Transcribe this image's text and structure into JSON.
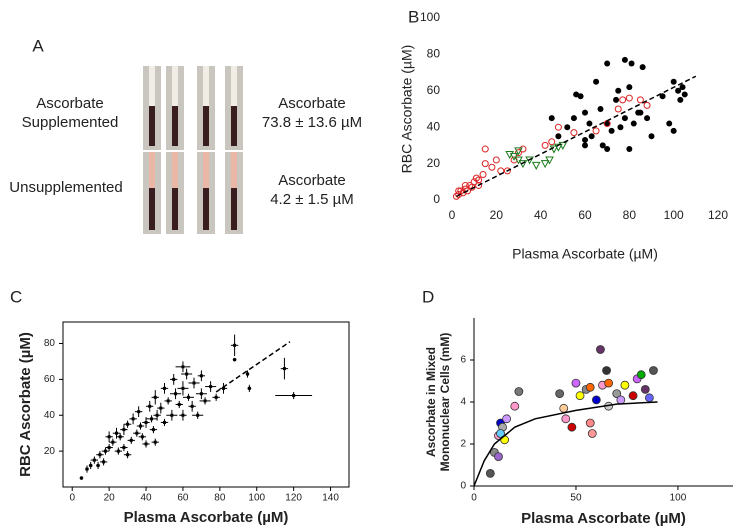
{
  "panel_a": {
    "label": "A",
    "rows": [
      {
        "label_lines": [
          "Ascorbate",
          "Supplemented"
        ],
        "result_lines": [
          "Ascorbate",
          "73.8 ± 13.6 µM"
        ]
      },
      {
        "label_lines": [
          "Unsupplemented"
        ],
        "result_lines": [
          "Ascorbate",
          "4.2 ± 1.5 µM"
        ]
      }
    ]
  },
  "chart_data": [
    {
      "type": "scatter",
      "panel_label": "B",
      "xlabel": "Plasma Ascorbate (µM)",
      "ylabel": [
        "RBC Ascorbate (µM)"
      ],
      "xlim": [
        0,
        120
      ],
      "ylim": [
        0,
        100
      ],
      "xticks": [
        0,
        20,
        40,
        60,
        80,
        100,
        120
      ],
      "yticks": [
        0,
        20,
        40,
        60,
        80,
        100
      ],
      "frame": false,
      "bold": false,
      "series": [
        {
          "marker": "circle",
          "color": "#000000",
          "x": [
            45,
            48,
            52,
            55,
            56,
            58,
            60,
            60,
            62,
            63,
            65,
            67,
            70,
            70,
            72,
            74,
            75,
            76,
            78,
            78,
            80,
            80,
            81,
            82,
            84,
            85,
            86,
            88,
            90,
            95,
            98,
            100,
            100,
            102,
            103,
            104,
            105,
            70,
            60,
            68
          ],
          "values": [
            45,
            35,
            40,
            45,
            58,
            57,
            48,
            33,
            42,
            35,
            65,
            50,
            42,
            28,
            38,
            55,
            60,
            40,
            77,
            45,
            28,
            62,
            75,
            42,
            48,
            48,
            73,
            45,
            35,
            57,
            42,
            38,
            65,
            60,
            55,
            62,
            58,
            75,
            30,
            30
          ]
        },
        {
          "marker": "circle-open",
          "color": "#dd2222",
          "x": [
            2,
            3,
            4,
            5,
            6,
            7,
            8,
            9,
            10,
            11,
            12,
            14,
            15,
            18,
            20,
            22,
            25,
            28,
            30,
            15,
            32,
            42,
            45,
            48,
            55,
            65,
            70,
            75,
            77,
            80,
            85,
            88,
            12,
            3,
            6
          ],
          "values": [
            2,
            3,
            5,
            4,
            6,
            5,
            8,
            7,
            10,
            12,
            11,
            14,
            20,
            18,
            22,
            16,
            16,
            22,
            26,
            28,
            28,
            30,
            32,
            40,
            37,
            38,
            42,
            50,
            55,
            56,
            55,
            52,
            8,
            5,
            8
          ]
        },
        {
          "marker": "triangle-open",
          "color": "#1a7a1a",
          "x": [
            28,
            30,
            32,
            35,
            38,
            42,
            44,
            46,
            50,
            48,
            30,
            26
          ],
          "values": [
            24,
            22,
            20,
            22,
            19,
            20,
            22,
            28,
            30,
            29,
            27,
            25
          ]
        },
        {
          "marker": "dashed-line",
          "color": "#000000",
          "x": [
            2,
            110
          ],
          "values": [
            2,
            68
          ]
        }
      ]
    },
    {
      "type": "scatter",
      "panel_label": "C",
      "xlabel": "Plasma Ascorbate (µM)",
      "ylabel": [
        "RBC Ascorbate (µM)"
      ],
      "xlim": [
        -5,
        150
      ],
      "ylim": [
        0,
        92
      ],
      "xticks": [
        0,
        20,
        40,
        60,
        80,
        100,
        120,
        140
      ],
      "yticks": [
        20,
        40,
        60,
        80
      ],
      "frame": true,
      "bold": true,
      "series": [
        {
          "marker": "errorbar",
          "color": "#000000",
          "x": [
            5,
            8,
            10,
            12,
            14,
            15,
            17,
            18,
            20,
            20,
            22,
            24,
            25,
            26,
            28,
            28,
            30,
            30,
            32,
            33,
            35,
            36,
            37,
            38,
            40,
            40,
            42,
            43,
            44,
            45,
            46,
            48,
            50,
            50,
            52,
            54,
            55,
            56,
            58,
            60,
            60,
            62,
            63,
            65,
            66,
            68,
            70,
            70,
            72,
            75,
            78,
            82,
            88,
            95,
            96,
            115,
            120,
            88,
            60,
            45
          ],
          "values": [
            5,
            10,
            12,
            15,
            12,
            18,
            14,
            20,
            22,
            28,
            25,
            30,
            20,
            28,
            22,
            32,
            35,
            18,
            26,
            38,
            30,
            42,
            34,
            28,
            36,
            24,
            45,
            38,
            32,
            50,
            40,
            44,
            36,
            55,
            48,
            40,
            60,
            52,
            46,
            55,
            40,
            63,
            50,
            45,
            58,
            40,
            52,
            62,
            48,
            56,
            50,
            55,
            79,
            63,
            55,
            66,
            51,
            71,
            67,
            25
          ],
          "xerr": [
            1,
            1,
            1,
            2,
            1,
            2,
            2,
            2,
            2,
            2,
            2,
            2,
            2,
            2,
            2,
            2,
            2,
            2,
            2,
            2,
            2,
            2,
            2,
            2,
            2,
            2,
            2,
            3,
            2,
            2,
            2,
            2,
            2,
            2,
            2,
            3,
            2,
            3,
            2,
            3,
            2,
            3,
            3,
            2,
            3,
            3,
            3,
            2,
            3,
            3,
            2,
            2,
            2,
            1,
            1,
            2,
            10,
            1,
            4,
            2
          ],
          "yerr": [
            1,
            2,
            2,
            2,
            2,
            2,
            2,
            2,
            2,
            3,
            2,
            3,
            2,
            2,
            2,
            3,
            2,
            2,
            2,
            3,
            2,
            3,
            2,
            2,
            3,
            2,
            3,
            2,
            2,
            4,
            3,
            3,
            2,
            3,
            2,
            3,
            3,
            3,
            2,
            4,
            3,
            3,
            2,
            3,
            3,
            2,
            3,
            3,
            2,
            3,
            2,
            3,
            6,
            2,
            2,
            6,
            2,
            1,
            3,
            2
          ]
        },
        {
          "marker": "dashed-line",
          "color": "#000000",
          "x": [
            78,
            118
          ],
          "values": [
            53,
            81
          ]
        }
      ]
    },
    {
      "type": "scatter",
      "panel_label": "D",
      "xlabel": "Plasma Ascorbate (µM)",
      "ylabel": [
        "Ascorbate in Mixed",
        "Mononuclear Cells (mM)"
      ],
      "xlim": [
        0,
        127
      ],
      "ylim": [
        0,
        8
      ],
      "xticks": [
        0,
        50,
        100
      ],
      "yticks": [
        0,
        2,
        4,
        6
      ],
      "frame": "axes",
      "bold": true,
      "series": [
        {
          "marker": "circle-multi",
          "x": [
            8,
            10,
            12,
            13,
            14,
            12,
            13,
            15,
            16,
            22,
            20,
            42,
            44,
            45,
            48,
            50,
            52,
            55,
            57,
            57,
            60,
            62,
            63,
            65,
            66,
            70,
            72,
            74,
            78,
            80,
            82,
            84,
            86,
            88,
            66,
            58
          ],
          "values": [
            0.6,
            1.6,
            2.4,
            3.0,
            2.8,
            1.4,
            2.5,
            2.2,
            3.2,
            4.5,
            3.8,
            4.4,
            3.7,
            3.2,
            2.8,
            4.9,
            4.3,
            4.6,
            4.7,
            3.0,
            4.1,
            6.5,
            4.8,
            5.5,
            4.9,
            4.4,
            4.1,
            4.8,
            4.3,
            5.1,
            5.3,
            4.6,
            4.2,
            5.5,
            3.8,
            2.5
          ],
          "colors": [
            "#555555",
            "#888888",
            "#ff99cc",
            "#0000cc",
            "#aaaaaa",
            "#9966cc",
            "#66ccff",
            "#ffff00",
            "#cc99ff",
            "#777777",
            "#ff99cc",
            "#666666",
            "#ffcc99",
            "#ff99cc",
            "#cc0000",
            "#cc66ff",
            "#ffff00",
            "#888888",
            "#ff6600",
            "#ff8888",
            "#0000cc",
            "#663366",
            "#ff99cc",
            "#333333",
            "#ff6600",
            "#999999",
            "#cc99ff",
            "#ffff00",
            "#cc0000",
            "#cc66ff",
            "#00aa00",
            "#663366",
            "#6666ff",
            "#555555",
            "#cccccc",
            "#ff9999"
          ]
        },
        {
          "marker": "curve",
          "color": "#000000",
          "x": [
            0,
            5,
            10,
            20,
            30,
            50,
            70,
            90
          ],
          "values": [
            0,
            1.2,
            2.0,
            2.8,
            3.2,
            3.6,
            3.9,
            4.0
          ]
        }
      ]
    }
  ]
}
